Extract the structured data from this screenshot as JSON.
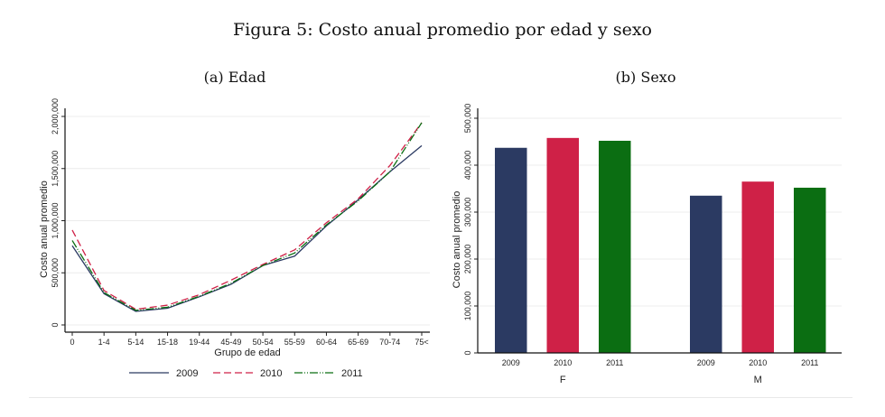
{
  "figure": {
    "title": "Figura 5: Costo anual promedio por edad y sexo",
    "subtitle_a": "(a) Edad",
    "subtitle_b": "(b) Sexo"
  },
  "colors": {
    "2009": "#2b3a62",
    "2010": "#cf2147",
    "2011": "#0b6e12"
  },
  "chart_data": [
    {
      "type": "line",
      "title": "(a) Edad",
      "xlabel": "Grupo de edad",
      "ylabel": "Costo anual promedio",
      "categories": [
        "0",
        "1-4",
        "5-14",
        "15-18",
        "19-44",
        "45-49",
        "50-54",
        "55-59",
        "60-64",
        "65-69",
        "70-74",
        "75<"
      ],
      "yticks": [
        0,
        500000,
        1000000,
        1500000,
        2000000
      ],
      "ytick_labels": [
        "0",
        "500,000",
        "1,000,000",
        "1,500,000",
        "2,000,000"
      ],
      "ylim": [
        0,
        2000000
      ],
      "grid": true,
      "legend": "bottom",
      "series": [
        {
          "name": "2009",
          "style": "solid",
          "values": [
            760000,
            300000,
            130000,
            160000,
            270000,
            390000,
            570000,
            660000,
            950000,
            1200000,
            1470000,
            1720000
          ]
        },
        {
          "name": "2010",
          "style": "dashed",
          "values": [
            910000,
            330000,
            150000,
            190000,
            290000,
            430000,
            580000,
            720000,
            980000,
            1210000,
            1530000,
            1940000
          ]
        },
        {
          "name": "2011",
          "style": "dash-dot",
          "values": [
            810000,
            310000,
            140000,
            170000,
            275000,
            400000,
            570000,
            690000,
            960000,
            1190000,
            1470000,
            1940000
          ]
        }
      ]
    },
    {
      "type": "bar",
      "title": "(b) Sexo",
      "xlabel": "",
      "ylabel": "Costo anual promedio",
      "groups": [
        "F",
        "M"
      ],
      "categories": [
        "2009",
        "2010",
        "2011"
      ],
      "yticks": [
        0,
        100000,
        200000,
        300000,
        400000,
        500000
      ],
      "ytick_labels": [
        "0",
        "100,000",
        "200,000",
        "300,000",
        "400,000",
        "500,000"
      ],
      "ylim": [
        0,
        500000
      ],
      "grid": true,
      "series": [
        {
          "name": "F",
          "values": [
            437000,
            458000,
            452000
          ]
        },
        {
          "name": "M",
          "values": [
            335000,
            365000,
            352000
          ]
        }
      ]
    }
  ]
}
